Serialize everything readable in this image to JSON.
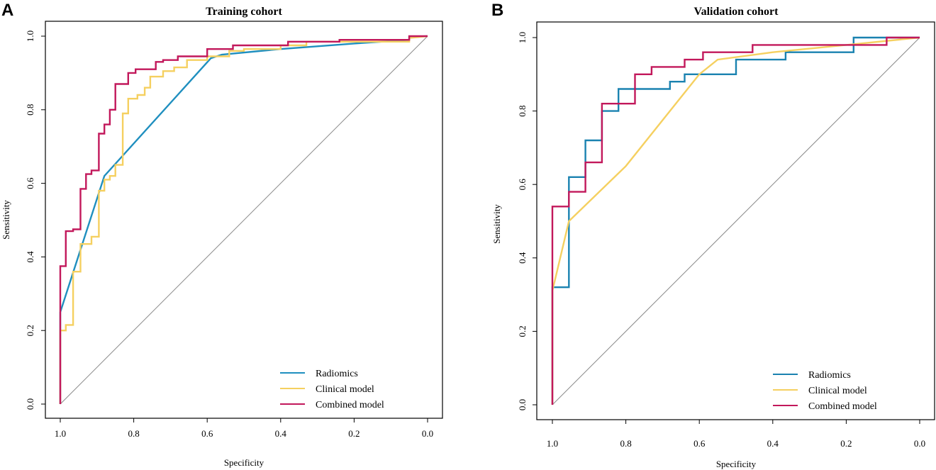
{
  "chart_data": [
    {
      "type": "line",
      "panel_label": "A",
      "title": "Training cohort",
      "xlabel": "Specificity",
      "ylabel": "Sensitivity",
      "xlim": [
        1.0,
        0.0
      ],
      "ylim": [
        0.0,
        1.0
      ],
      "x_ticks": [
        "1.0",
        "0.8",
        "0.6",
        "0.4",
        "0.2",
        "0.0"
      ],
      "y_ticks": [
        "0.0",
        "0.2",
        "0.4",
        "0.6",
        "0.8",
        "1.0"
      ],
      "reference_line": "diagonal",
      "legend_position": "bottom-right",
      "series": [
        {
          "name": "Radiomics",
          "color": "#1f8fbf",
          "step": false,
          "points": [
            [
              1.0,
              0.0
            ],
            [
              1.0,
              0.25
            ],
            [
              0.88,
              0.62
            ],
            [
              0.59,
              0.94
            ],
            [
              0.56,
              0.95
            ],
            [
              0.4,
              0.965
            ],
            [
              0.2,
              0.98
            ],
            [
              0.05,
              0.99
            ],
            [
              0.05,
              0.998
            ],
            [
              0.0,
              1.0
            ]
          ]
        },
        {
          "name": "Clinical model",
          "color": "#f5d060",
          "step": true,
          "points": [
            [
              1.0,
              0.0
            ],
            [
              1.0,
              0.2
            ],
            [
              0.985,
              0.2
            ],
            [
              0.985,
              0.215
            ],
            [
              0.965,
              0.215
            ],
            [
              0.965,
              0.36
            ],
            [
              0.945,
              0.36
            ],
            [
              0.945,
              0.435
            ],
            [
              0.915,
              0.435
            ],
            [
              0.915,
              0.455
            ],
            [
              0.895,
              0.455
            ],
            [
              0.895,
              0.58
            ],
            [
              0.88,
              0.58
            ],
            [
              0.88,
              0.61
            ],
            [
              0.865,
              0.61
            ],
            [
              0.865,
              0.62
            ],
            [
              0.85,
              0.62
            ],
            [
              0.85,
              0.65
            ],
            [
              0.83,
              0.65
            ],
            [
              0.83,
              0.79
            ],
            [
              0.815,
              0.79
            ],
            [
              0.815,
              0.83
            ],
            [
              0.79,
              0.83
            ],
            [
              0.79,
              0.84
            ],
            [
              0.77,
              0.84
            ],
            [
              0.77,
              0.86
            ],
            [
              0.755,
              0.86
            ],
            [
              0.755,
              0.89
            ],
            [
              0.72,
              0.89
            ],
            [
              0.72,
              0.905
            ],
            [
              0.69,
              0.905
            ],
            [
              0.69,
              0.915
            ],
            [
              0.655,
              0.915
            ],
            [
              0.655,
              0.935
            ],
            [
              0.6,
              0.935
            ],
            [
              0.6,
              0.945
            ],
            [
              0.54,
              0.945
            ],
            [
              0.54,
              0.96
            ],
            [
              0.5,
              0.96
            ],
            [
              0.5,
              0.965
            ],
            [
              0.4,
              0.965
            ],
            [
              0.4,
              0.975
            ],
            [
              0.33,
              0.975
            ],
            [
              0.33,
              0.985
            ],
            [
              0.05,
              0.985
            ],
            [
              0.05,
              0.995
            ],
            [
              0.0,
              1.0
            ]
          ]
        },
        {
          "name": "Combined model",
          "color": "#c2185b",
          "step": true,
          "points": [
            [
              1.0,
              0.0
            ],
            [
              1.0,
              0.375
            ],
            [
              0.985,
              0.375
            ],
            [
              0.985,
              0.47
            ],
            [
              0.965,
              0.47
            ],
            [
              0.965,
              0.475
            ],
            [
              0.945,
              0.475
            ],
            [
              0.945,
              0.585
            ],
            [
              0.93,
              0.585
            ],
            [
              0.93,
              0.625
            ],
            [
              0.915,
              0.625
            ],
            [
              0.915,
              0.635
            ],
            [
              0.895,
              0.635
            ],
            [
              0.895,
              0.735
            ],
            [
              0.88,
              0.735
            ],
            [
              0.88,
              0.76
            ],
            [
              0.865,
              0.76
            ],
            [
              0.865,
              0.8
            ],
            [
              0.85,
              0.8
            ],
            [
              0.85,
              0.87
            ],
            [
              0.815,
              0.87
            ],
            [
              0.815,
              0.9
            ],
            [
              0.795,
              0.9
            ],
            [
              0.795,
              0.91
            ],
            [
              0.74,
              0.91
            ],
            [
              0.74,
              0.93
            ],
            [
              0.72,
              0.93
            ],
            [
              0.72,
              0.935
            ],
            [
              0.68,
              0.935
            ],
            [
              0.68,
              0.945
            ],
            [
              0.6,
              0.945
            ],
            [
              0.6,
              0.965
            ],
            [
              0.53,
              0.965
            ],
            [
              0.53,
              0.975
            ],
            [
              0.38,
              0.975
            ],
            [
              0.38,
              0.985
            ],
            [
              0.24,
              0.985
            ],
            [
              0.24,
              0.99
            ],
            [
              0.05,
              0.99
            ],
            [
              0.05,
              1.0
            ],
            [
              0.0,
              1.0
            ]
          ]
        }
      ]
    },
    {
      "type": "line",
      "panel_label": "B",
      "title": "Validation cohort",
      "xlabel": "Specificity",
      "ylabel": "Sensitivity",
      "xlim": [
        1.0,
        0.0
      ],
      "ylim": [
        0.0,
        1.0
      ],
      "x_ticks": [
        "1.0",
        "0.8",
        "0.6",
        "0.4",
        "0.2",
        "0.0"
      ],
      "y_ticks": [
        "0.0",
        "0.2",
        "0.4",
        "0.6",
        "0.8",
        "1.0"
      ],
      "reference_line": "diagonal",
      "legend_position": "bottom-right",
      "series": [
        {
          "name": "Radiomics",
          "color": "#1a82b0",
          "step": true,
          "points": [
            [
              1.0,
              0.0
            ],
            [
              1.0,
              0.32
            ],
            [
              0.955,
              0.32
            ],
            [
              0.955,
              0.62
            ],
            [
              0.91,
              0.62
            ],
            [
              0.91,
              0.72
            ],
            [
              0.865,
              0.72
            ],
            [
              0.865,
              0.8
            ],
            [
              0.82,
              0.8
            ],
            [
              0.82,
              0.86
            ],
            [
              0.68,
              0.86
            ],
            [
              0.68,
              0.88
            ],
            [
              0.64,
              0.88
            ],
            [
              0.64,
              0.9
            ],
            [
              0.5,
              0.9
            ],
            [
              0.5,
              0.94
            ],
            [
              0.365,
              0.94
            ],
            [
              0.365,
              0.96
            ],
            [
              0.18,
              0.96
            ],
            [
              0.18,
              1.0
            ],
            [
              0.0,
              1.0
            ]
          ]
        },
        {
          "name": "Clinical model",
          "color": "#f5d060",
          "step": false,
          "points": [
            [
              1.0,
              0.0
            ],
            [
              1.0,
              0.31
            ],
            [
              0.955,
              0.5
            ],
            [
              0.8,
              0.65
            ],
            [
              0.6,
              0.9
            ],
            [
              0.55,
              0.94
            ],
            [
              0.4,
              0.96
            ],
            [
              0.2,
              0.98
            ],
            [
              0.0,
              1.0
            ]
          ]
        },
        {
          "name": "Combined model",
          "color": "#c2185b",
          "step": true,
          "points": [
            [
              1.0,
              0.0
            ],
            [
              1.0,
              0.54
            ],
            [
              0.955,
              0.54
            ],
            [
              0.955,
              0.58
            ],
            [
              0.91,
              0.58
            ],
            [
              0.91,
              0.66
            ],
            [
              0.865,
              0.66
            ],
            [
              0.865,
              0.82
            ],
            [
              0.775,
              0.82
            ],
            [
              0.775,
              0.9
            ],
            [
              0.73,
              0.9
            ],
            [
              0.73,
              0.92
            ],
            [
              0.64,
              0.92
            ],
            [
              0.64,
              0.94
            ],
            [
              0.59,
              0.94
            ],
            [
              0.59,
              0.96
            ],
            [
              0.455,
              0.96
            ],
            [
              0.455,
              0.98
            ],
            [
              0.09,
              0.98
            ],
            [
              0.09,
              1.0
            ],
            [
              0.0,
              1.0
            ]
          ]
        }
      ]
    }
  ]
}
